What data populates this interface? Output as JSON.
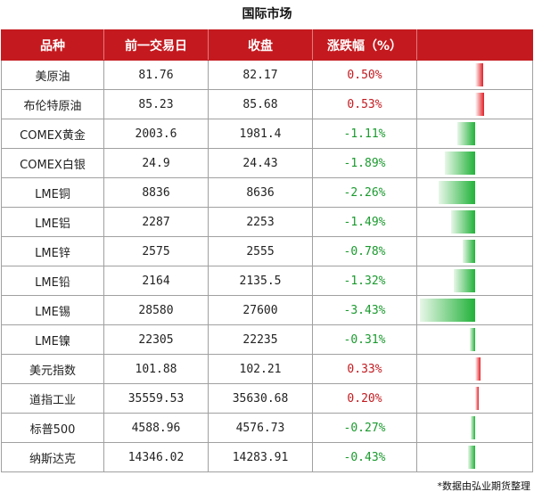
{
  "title": "国际市场",
  "headers": [
    "品种",
    "前一交易日",
    "收盘",
    "涨跌幅（%）",
    ""
  ],
  "rows": [
    {
      "name": "美原油",
      "prev": "81.76",
      "close": "82.17",
      "change": "0.50%",
      "value": 0.5
    },
    {
      "name": "布伦特原油",
      "prev": "85.23",
      "close": "85.68",
      "change": "0.53%",
      "value": 0.53
    },
    {
      "name": "COMEX黄金",
      "prev": "2003.6",
      "close": "1981.4",
      "change": "-1.11%",
      "value": -1.11
    },
    {
      "name": "COMEX白银",
      "prev": "24.9",
      "close": "24.43",
      "change": "-1.89%",
      "value": -1.89
    },
    {
      "name": "LME铜",
      "prev": "8836",
      "close": "8636",
      "change": "-2.26%",
      "value": -2.26
    },
    {
      "name": "LME铝",
      "prev": "2287",
      "close": "2253",
      "change": "-1.49%",
      "value": -1.49
    },
    {
      "name": "LME锌",
      "prev": "2575",
      "close": "2555",
      "change": "-0.78%",
      "value": -0.78
    },
    {
      "name": "LME铅",
      "prev": "2164",
      "close": "2135.5",
      "change": "-1.32%",
      "value": -1.32
    },
    {
      "name": "LME锡",
      "prev": "28580",
      "close": "27600",
      "change": "-3.43%",
      "value": -3.43
    },
    {
      "name": "LME镍",
      "prev": "22305",
      "close": "22235",
      "change": "-0.31%",
      "value": -0.31
    },
    {
      "name": "美元指数",
      "prev": "101.88",
      "close": "102.21",
      "change": "0.33%",
      "value": 0.33
    },
    {
      "name": "道指工业",
      "prev": "35559.53",
      "close": "35630.68",
      "change": "0.20%",
      "value": 0.2
    },
    {
      "name": "标普500",
      "prev": "4588.96",
      "close": "4576.73",
      "change": "-0.27%",
      "value": -0.27
    },
    {
      "name": "纳斯达克",
      "prev": "14346.02",
      "close": "14283.91",
      "change": "-0.43%",
      "value": -0.43
    }
  ],
  "colors": {
    "header_bg": "#c41a1f",
    "positive": "#c21a1f",
    "negative": "#1a9a2e"
  },
  "note": "*数据由弘业期货整理"
}
